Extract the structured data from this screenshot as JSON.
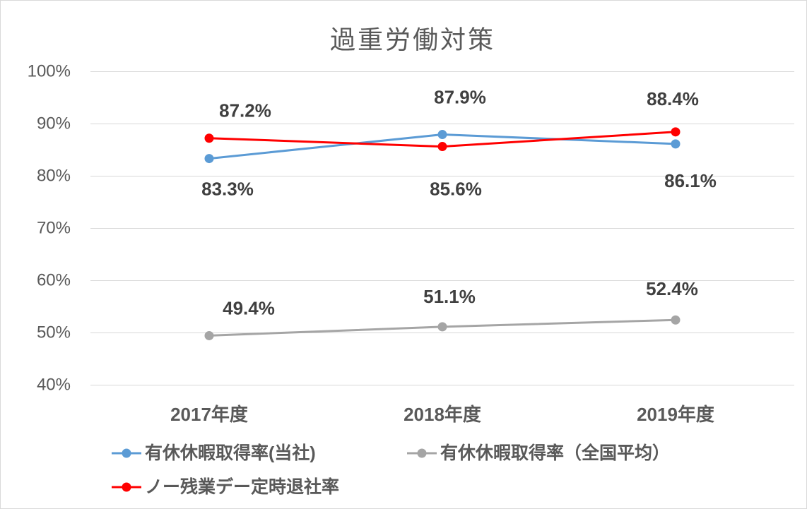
{
  "chart_data": {
    "type": "line",
    "title": "過重労働対策",
    "categories": [
      "2017年度",
      "2018年度",
      "2019年度"
    ],
    "ylim": [
      40,
      100
    ],
    "y_ticks": [
      100,
      90,
      80,
      70,
      60,
      50,
      40
    ],
    "y_tick_labels": [
      "100%",
      "90%",
      "80%",
      "70%",
      "60%",
      "50%",
      "40%"
    ],
    "grid": true,
    "legend_position": "bottom",
    "series": [
      {
        "name": "有休休暇取得率(当社)",
        "color": "#5B9BD5",
        "values": [
          83.3,
          87.9,
          86.1
        ],
        "data_labels": [
          "83.3%",
          "87.9%",
          "86.1%"
        ]
      },
      {
        "name": "有休休暇取得率（全国平均）",
        "color": "#A5A5A5",
        "values": [
          49.4,
          51.1,
          52.4
        ],
        "data_labels": [
          "49.4%",
          "51.1%",
          "52.4%"
        ]
      },
      {
        "name": "ノー残業デー定時退社率",
        "color": "#FF0000",
        "values": [
          87.2,
          85.6,
          88.4
        ],
        "data_labels": [
          "87.2%",
          "85.6%",
          "88.4%"
        ]
      }
    ],
    "colors": {
      "text": "#595959",
      "data_label": "#404040",
      "grid": "#D9D9D9",
      "border": "#D9D9D9",
      "background": "#FFFFFF"
    }
  }
}
